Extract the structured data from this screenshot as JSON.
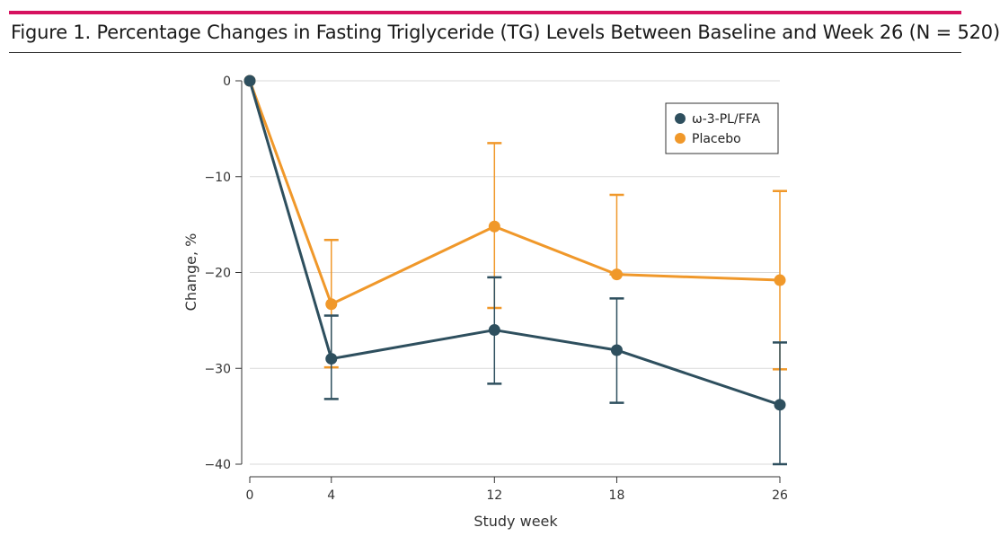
{
  "figure": {
    "title": "Figure 1. Percentage Changes in Fasting Triglyceride (TG) Levels Between Baseline and Week 26 (N = 520)"
  },
  "colors": {
    "accent_rule": "#d6115f",
    "series_1": "#2e4f5e",
    "series_2": "#f0982a",
    "grid": "#d9d9d9"
  },
  "chart_data": {
    "type": "line",
    "xlabel": "Study week",
    "ylabel": "Change, %",
    "x": [
      0,
      4,
      12,
      18,
      26
    ],
    "xlim": [
      0,
      26
    ],
    "ylim": [
      -40,
      0
    ],
    "yticks": [
      0,
      -10,
      -20,
      -30,
      -40
    ],
    "xticks": [
      0,
      4,
      12,
      18,
      26
    ],
    "grid": true,
    "legend_position": "top-right",
    "series": [
      {
        "name": "ω-3-PL/FFA",
        "values": [
          0,
          -29.0,
          -26.0,
          -28.1,
          -33.8
        ],
        "error_low": [
          0,
          -33.2,
          -31.6,
          -33.6,
          -40.0
        ],
        "error_high": [
          0,
          -24.5,
          -20.5,
          -22.7,
          -27.3
        ]
      },
      {
        "name": "Placebo",
        "values": [
          0,
          -23.3,
          -15.2,
          -20.2,
          -20.8
        ],
        "error_low": [
          0,
          -29.9,
          -23.7,
          -20.2,
          -30.1
        ],
        "error_high": [
          0,
          -16.6,
          -6.5,
          -11.9,
          -11.5
        ]
      }
    ]
  }
}
